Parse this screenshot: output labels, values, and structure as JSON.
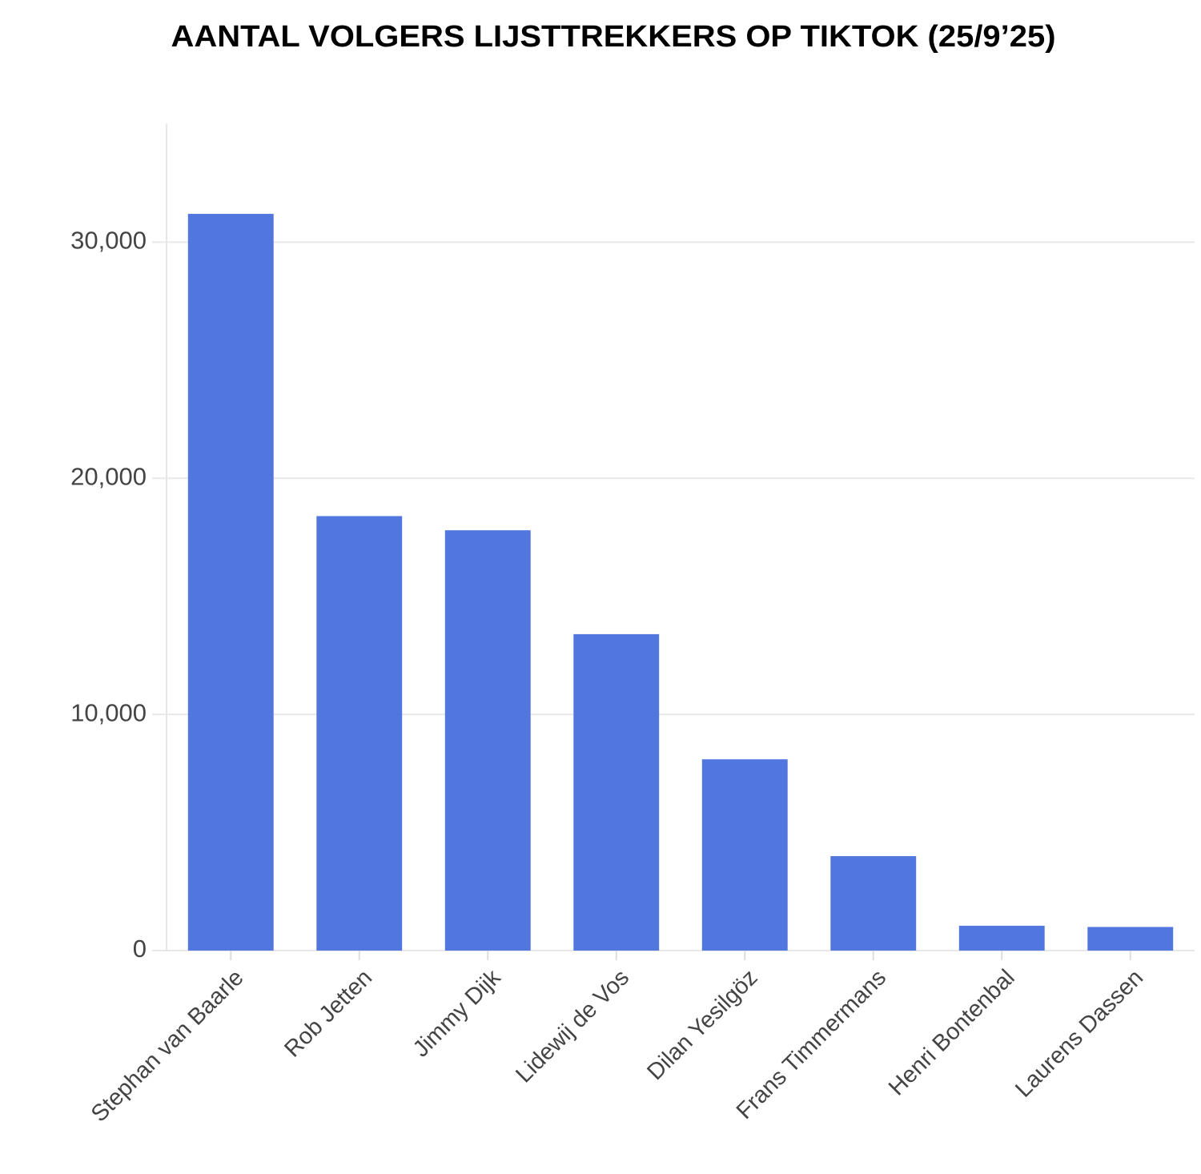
{
  "chart_data": {
    "type": "bar",
    "title": "AANTAL VOLGERS LIJSTTREKKERS OP TIKTOK (25/9’25)",
    "categories": [
      "Stephan van Baarle",
      "Rob Jetten",
      "Jimmy Dijk",
      "Lidewij de Vos",
      "Dilan Yesilgöz",
      "Frans Timmermans",
      "Henri Bontenbal",
      "Laurens Dassen"
    ],
    "values": [
      31200,
      18400,
      17800,
      13400,
      8100,
      4000,
      1050,
      1000
    ],
    "color": "#5177de",
    "ylim": [
      0,
      35000
    ],
    "yticks": [
      0,
      {
        "value": 10000,
        "label": "10,000"
      },
      {
        "value": 20000,
        "label": "20,000"
      },
      {
        "value": 30000,
        "label": "30,000"
      }
    ],
    "grid": true
  }
}
